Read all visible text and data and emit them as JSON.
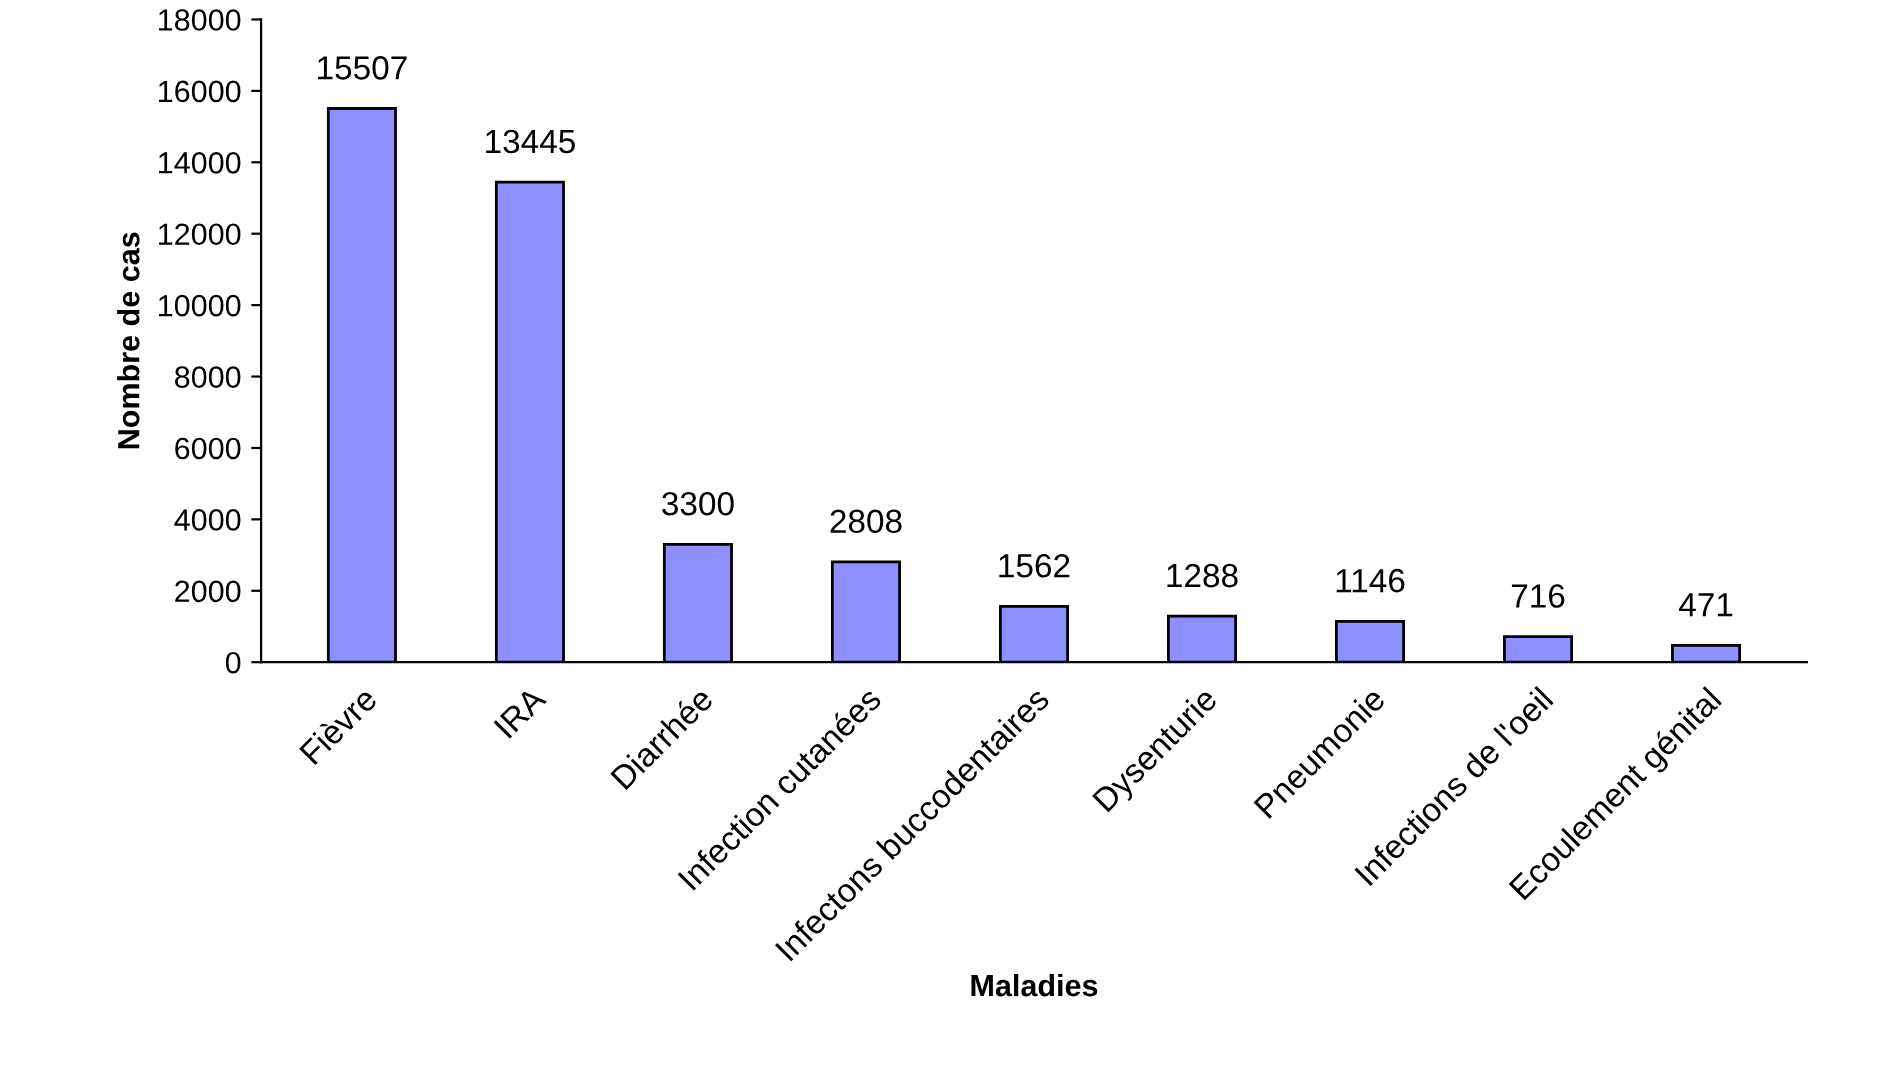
{
  "chart_data": {
    "type": "bar",
    "xlabel": "Maladies",
    "ylabel": "Nombre de cas",
    "categories": [
      "Fièvre",
      "IRA",
      "Diarrhée",
      "Infection cutanées",
      "Infectons buccodentaires",
      "Dysenturie",
      "Pneumonie",
      "Infections de l'oeil",
      "Ecoulement génital"
    ],
    "values": [
      15507,
      13445,
      3300,
      2808,
      1562,
      1288,
      1146,
      716,
      471
    ],
    "color": "#8f8fff",
    "ylim": [
      0,
      18000
    ],
    "yticks": [
      0,
      2000,
      4000,
      6000,
      8000,
      10000,
      12000,
      14000,
      16000,
      18000
    ],
    "data_labels": true,
    "grid": false,
    "legend": false
  }
}
